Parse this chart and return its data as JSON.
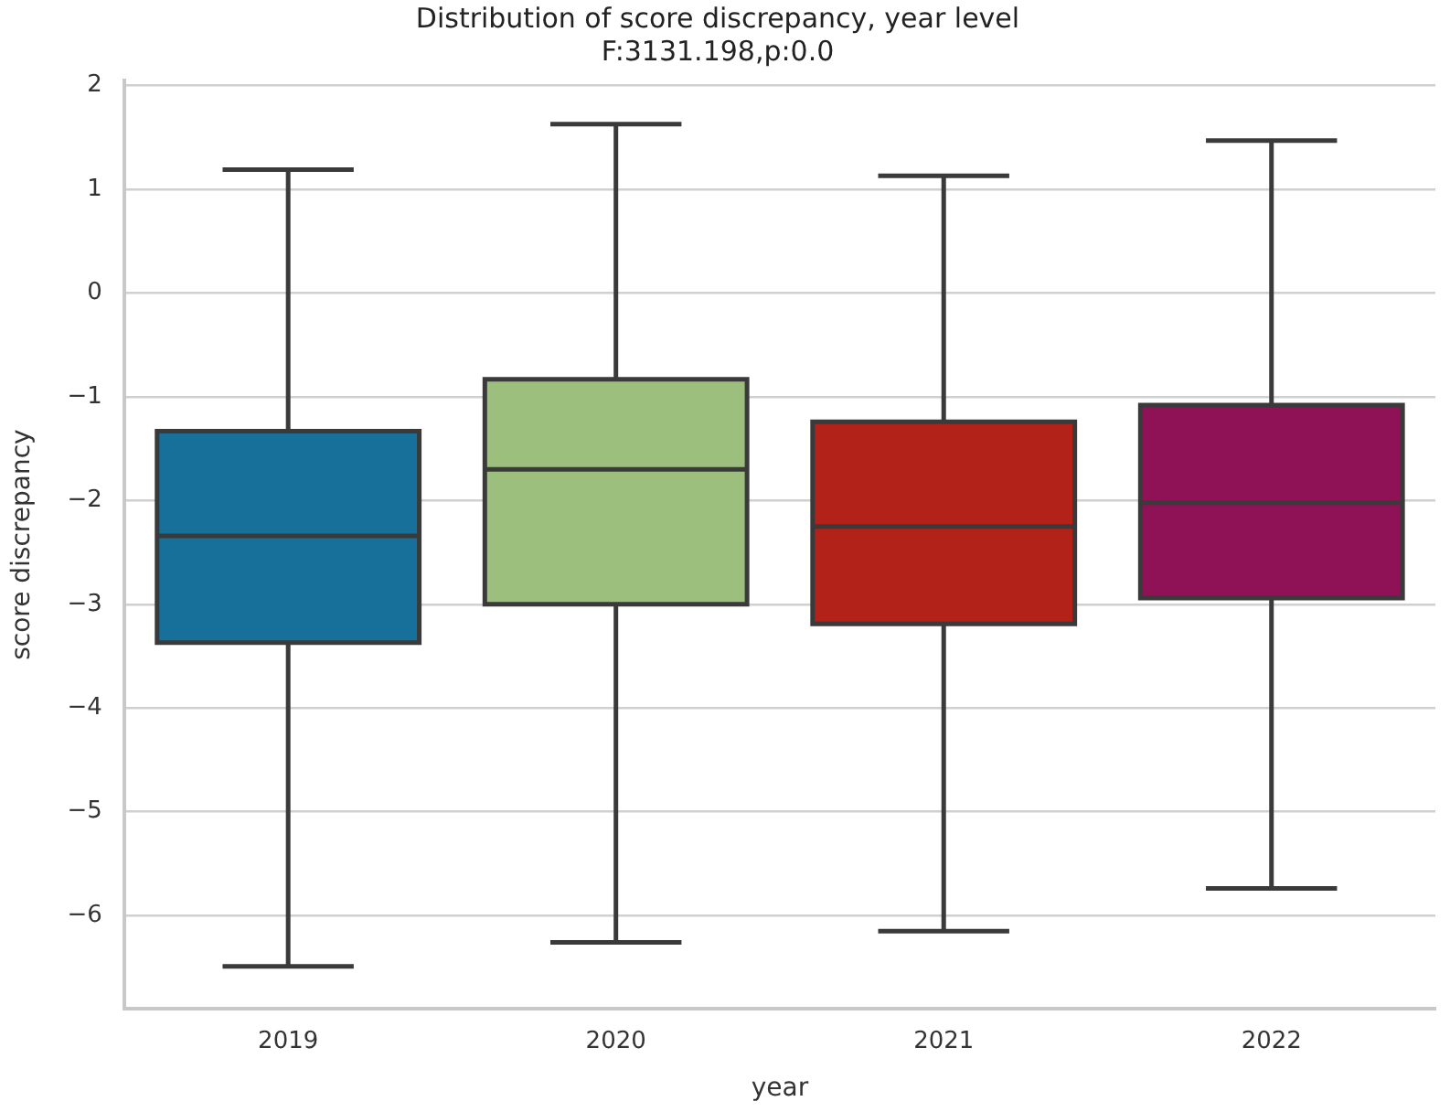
{
  "chart_data": {
    "type": "box",
    "title": "Distribution of score discrepancy, year level",
    "subtitle": "F:3131.198,p:0.0",
    "xlabel": "year",
    "ylabel": "score discrepancy",
    "categories": [
      "2019",
      "2020",
      "2021",
      "2022"
    ],
    "colors": [
      "#16709a",
      "#9cbf7e",
      "#b22218",
      "#8f1256"
    ],
    "boxes": [
      {
        "low": -6.49,
        "q1": -3.37,
        "median": -2.34,
        "q3": -1.33,
        "high": 1.19
      },
      {
        "low": -6.26,
        "q1": -3.0,
        "median": -1.7,
        "q3": -0.83,
        "high": 1.63
      },
      {
        "low": -6.15,
        "q1": -3.19,
        "median": -2.25,
        "q3": -1.24,
        "high": 1.13
      },
      {
        "low": -5.74,
        "q1": -2.94,
        "median": -2.02,
        "q3": -1.08,
        "high": 1.47
      }
    ],
    "ylim": [
      -6.9,
      2.05
    ],
    "yticks": [
      -6,
      -5,
      -4,
      -3,
      -2,
      -1,
      0,
      1,
      2
    ],
    "grid": "y"
  }
}
